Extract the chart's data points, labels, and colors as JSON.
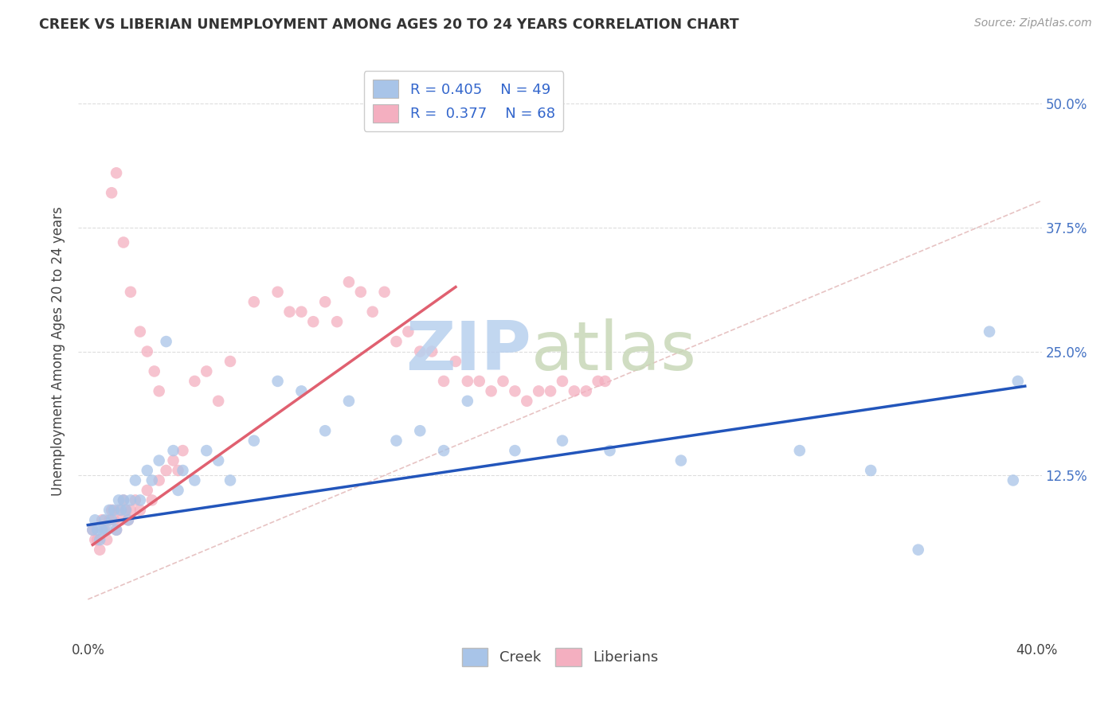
{
  "title": "CREEK VS LIBERIAN UNEMPLOYMENT AMONG AGES 20 TO 24 YEARS CORRELATION CHART",
  "source": "Source: ZipAtlas.com",
  "ylabel": "Unemployment Among Ages 20 to 24 years",
  "xlim": [
    -0.004,
    0.402
  ],
  "ylim": [
    -0.04,
    0.54
  ],
  "creek_color": "#a8c4e8",
  "liberian_color": "#f4afc0",
  "creek_line_color": "#2255bb",
  "liberian_line_color": "#e06070",
  "diagonal_line_color": "#cccccc",
  "grid_color": "#dddddd",
  "legend_text_color": "#3366cc",
  "background_color": "#ffffff",
  "creek_scatter_x": [
    0.002,
    0.003,
    0.004,
    0.005,
    0.006,
    0.007,
    0.008,
    0.009,
    0.01,
    0.011,
    0.012,
    0.013,
    0.014,
    0.015,
    0.016,
    0.017,
    0.018,
    0.02,
    0.022,
    0.025,
    0.027,
    0.03,
    0.033,
    0.036,
    0.038,
    0.04,
    0.045,
    0.05,
    0.055,
    0.06,
    0.07,
    0.08,
    0.09,
    0.1,
    0.11,
    0.13,
    0.14,
    0.15,
    0.16,
    0.18,
    0.2,
    0.22,
    0.25,
    0.3,
    0.33,
    0.35,
    0.38,
    0.39,
    0.392
  ],
  "creek_scatter_y": [
    0.07,
    0.08,
    0.07,
    0.06,
    0.07,
    0.08,
    0.07,
    0.09,
    0.08,
    0.09,
    0.07,
    0.1,
    0.09,
    0.1,
    0.09,
    0.08,
    0.1,
    0.12,
    0.1,
    0.13,
    0.12,
    0.14,
    0.26,
    0.15,
    0.11,
    0.13,
    0.12,
    0.15,
    0.14,
    0.12,
    0.16,
    0.22,
    0.21,
    0.17,
    0.2,
    0.16,
    0.17,
    0.15,
    0.2,
    0.15,
    0.16,
    0.15,
    0.14,
    0.15,
    0.13,
    0.05,
    0.27,
    0.12,
    0.22
  ],
  "liberian_scatter_x": [
    0.002,
    0.003,
    0.004,
    0.005,
    0.006,
    0.007,
    0.008,
    0.009,
    0.01,
    0.011,
    0.012,
    0.013,
    0.014,
    0.015,
    0.016,
    0.017,
    0.018,
    0.02,
    0.022,
    0.025,
    0.027,
    0.03,
    0.033,
    0.036,
    0.038,
    0.04,
    0.045,
    0.05,
    0.055,
    0.06,
    0.07,
    0.08,
    0.085,
    0.09,
    0.095,
    0.1,
    0.105,
    0.11,
    0.115,
    0.12,
    0.125,
    0.13,
    0.135,
    0.14,
    0.145,
    0.15,
    0.155,
    0.16,
    0.165,
    0.17,
    0.175,
    0.18,
    0.185,
    0.19,
    0.195,
    0.2,
    0.205,
    0.21,
    0.215,
    0.218,
    0.01,
    0.012,
    0.015,
    0.018,
    0.022,
    0.025,
    0.028,
    0.03
  ],
  "liberian_scatter_y": [
    0.07,
    0.06,
    0.06,
    0.05,
    0.08,
    0.07,
    0.06,
    0.08,
    0.09,
    0.08,
    0.07,
    0.09,
    0.08,
    0.1,
    0.09,
    0.08,
    0.09,
    0.1,
    0.09,
    0.11,
    0.1,
    0.12,
    0.13,
    0.14,
    0.13,
    0.15,
    0.22,
    0.23,
    0.2,
    0.24,
    0.3,
    0.31,
    0.29,
    0.29,
    0.28,
    0.3,
    0.28,
    0.32,
    0.31,
    0.29,
    0.31,
    0.26,
    0.27,
    0.25,
    0.25,
    0.22,
    0.24,
    0.22,
    0.22,
    0.21,
    0.22,
    0.21,
    0.2,
    0.21,
    0.21,
    0.22,
    0.21,
    0.21,
    0.22,
    0.22,
    0.41,
    0.43,
    0.36,
    0.31,
    0.27,
    0.25,
    0.23,
    0.21
  ],
  "creek_line_x0": 0.0,
  "creek_line_x1": 0.395,
  "creek_line_y0": 0.075,
  "creek_line_y1": 0.215,
  "liberian_line_x0": 0.002,
  "liberian_line_x1": 0.155,
  "liberian_line_y0": 0.055,
  "liberian_line_y1": 0.315
}
